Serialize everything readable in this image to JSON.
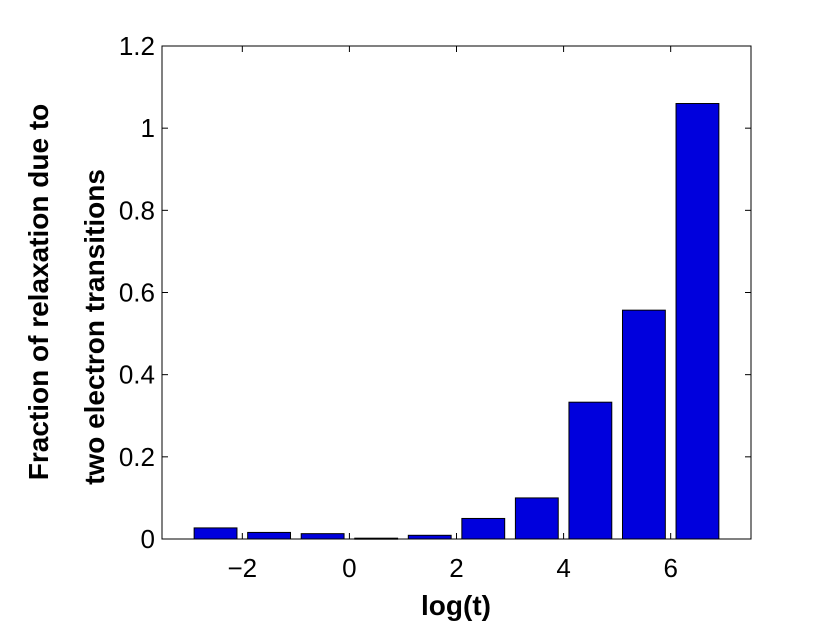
{
  "chart_data": {
    "type": "bar",
    "title": "",
    "xlabel": "log(t)",
    "ylabel_lines": [
      "Fraction of relaxation due to",
      "two electron transitions"
    ],
    "x": [
      -2.5,
      -1.5,
      -0.5,
      0.5,
      1.5,
      2.5,
      3.5,
      4.5,
      5.5,
      6.5
    ],
    "values": [
      0.027,
      0.016,
      0.013,
      0.002,
      0.009,
      0.05,
      0.1,
      0.333,
      0.557,
      1.06
    ],
    "xlim": [
      -3.5,
      7.5
    ],
    "ylim": [
      0,
      1.2
    ],
    "xticks": [
      -2,
      0,
      2,
      4,
      6
    ],
    "xtick_labels": [
      "−2",
      "0",
      "2",
      "4",
      "6"
    ],
    "yticks": [
      0,
      0.2,
      0.4,
      0.6,
      0.8,
      1,
      1.2
    ],
    "ytick_labels": [
      "0",
      "0.2",
      "0.4",
      "0.6",
      "0.8",
      "1",
      "1.2"
    ],
    "bar_width": 0.8,
    "bar_color": "#0000dd",
    "grid": false,
    "legend": "none"
  }
}
